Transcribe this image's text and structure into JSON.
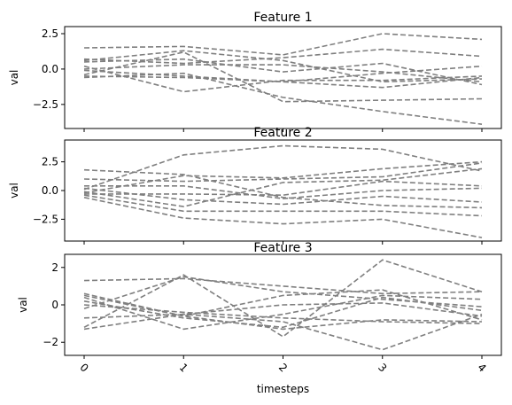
{
  "figure": {
    "xlabel": "timesteps"
  },
  "chart_data": [
    {
      "type": "line",
      "title": "Feature 1",
      "xlabel": "",
      "ylabel": "val",
      "x": [
        0,
        1,
        2,
        3,
        4
      ],
      "xticks": [
        "0",
        "1",
        "2",
        "3",
        "4"
      ],
      "yticks": [
        2.5,
        0.0,
        -2.5
      ],
      "ytick_labels": [
        "2.5",
        "0.0",
        "−2.5"
      ],
      "ylim": [
        -4.2,
        3.0
      ],
      "grid": false,
      "line_style": "dashed",
      "line_color": "#7f7f7f",
      "series": [
        {
          "values": [
            1.5,
            1.6,
            1.0,
            2.5,
            2.1
          ]
        },
        {
          "values": [
            0.7,
            0.4,
            0.8,
            1.4,
            0.9
          ]
        },
        {
          "values": [
            0.6,
            1.3,
            0.6,
            -0.9,
            -0.7
          ]
        },
        {
          "values": [
            0.5,
            0.7,
            -0.2,
            0.4,
            -1.1
          ]
        },
        {
          "values": [
            0.2,
            -1.6,
            -0.8,
            -0.8,
            -0.5
          ]
        },
        {
          "values": [
            -0.1,
            -0.5,
            -0.9,
            -0.3,
            0.2
          ]
        },
        {
          "values": [
            -0.4,
            1.2,
            -2.3,
            -2.2,
            -2.1
          ]
        },
        {
          "values": [
            -0.6,
            -0.3,
            -2.0,
            -3.0,
            -3.9
          ]
        },
        {
          "values": [
            -0.5,
            -0.6,
            -0.9,
            -1.3,
            -0.6
          ]
        },
        {
          "values": [
            0.0,
            0.3,
            0.3,
            -0.2,
            -0.9
          ]
        }
      ]
    },
    {
      "type": "line",
      "title": "Feature 2",
      "xlabel": "",
      "ylabel": "val",
      "x": [
        0,
        1,
        2,
        3,
        4
      ],
      "xticks": [
        "0",
        "1",
        "2",
        "3",
        "4"
      ],
      "yticks": [
        2.5,
        0.0,
        -2.5
      ],
      "ytick_labels": [
        "2.5",
        "0.0",
        "−2.5"
      ],
      "ylim": [
        -4.4,
        4.4
      ],
      "grid": false,
      "line_style": "dashed",
      "line_color": "#7f7f7f",
      "series": [
        {
          "values": [
            1.8,
            1.4,
            -0.6,
            -1.3,
            -1.5
          ]
        },
        {
          "values": [
            1.0,
            0.8,
            1.0,
            1.2,
            2.4
          ]
        },
        {
          "values": [
            0.1,
            3.1,
            3.9,
            3.6,
            1.7
          ]
        },
        {
          "values": [
            -0.2,
            1.3,
            1.1,
            1.9,
            2.5
          ]
        },
        {
          "values": [
            -0.3,
            -0.3,
            -0.4,
            0.8,
            0.4
          ]
        },
        {
          "values": [
            0.4,
            0.4,
            -0.7,
            0.0,
            0.2
          ]
        },
        {
          "values": [
            -0.1,
            -1.4,
            0.7,
            0.9,
            1.9
          ]
        },
        {
          "values": [
            -0.4,
            -1.8,
            -1.8,
            -1.8,
            -2.2
          ]
        },
        {
          "values": [
            -0.6,
            -2.4,
            -2.9,
            -2.5,
            -4.1
          ]
        },
        {
          "values": [
            0.2,
            -0.8,
            -1.2,
            -0.5,
            -1.0
          ]
        }
      ]
    },
    {
      "type": "line",
      "title": "Feature 3",
      "xlabel": "timesteps",
      "ylabel": "val",
      "x": [
        0,
        1,
        2,
        3,
        4
      ],
      "xticks": [
        "0",
        "1",
        "2",
        "3",
        "4"
      ],
      "yticks": [
        2,
        0,
        -2
      ],
      "ytick_labels": [
        "2",
        "0",
        "−2"
      ],
      "ylim": [
        -2.7,
        2.7
      ],
      "grid": false,
      "line_style": "dashed",
      "line_color": "#7f7f7f",
      "series": [
        {
          "values": [
            1.3,
            1.4,
            1.0,
            0.6,
            0.7
          ]
        },
        {
          "values": [
            0.6,
            -0.6,
            0.5,
            0.8,
            -0.8
          ]
        },
        {
          "values": [
            -0.2,
            1.5,
            0.7,
            0.3,
            -0.1
          ]
        },
        {
          "values": [
            -1.2,
            1.6,
            -1.7,
            2.4,
            0.7
          ]
        },
        {
          "values": [
            -0.7,
            -0.5,
            -0.9,
            -2.4,
            -0.5
          ]
        },
        {
          "values": [
            0.2,
            -0.7,
            -1.2,
            0.4,
            -0.3
          ]
        },
        {
          "values": [
            0.5,
            -0.6,
            -1.3,
            -0.8,
            -0.9
          ]
        },
        {
          "values": [
            -1.3,
            -0.5,
            0.0,
            0.1,
            -0.6
          ]
        },
        {
          "values": [
            0.4,
            -1.3,
            -0.5,
            0.5,
            0.3
          ]
        },
        {
          "values": [
            0.0,
            -0.4,
            -0.7,
            -0.9,
            -1.0
          ]
        }
      ]
    }
  ]
}
